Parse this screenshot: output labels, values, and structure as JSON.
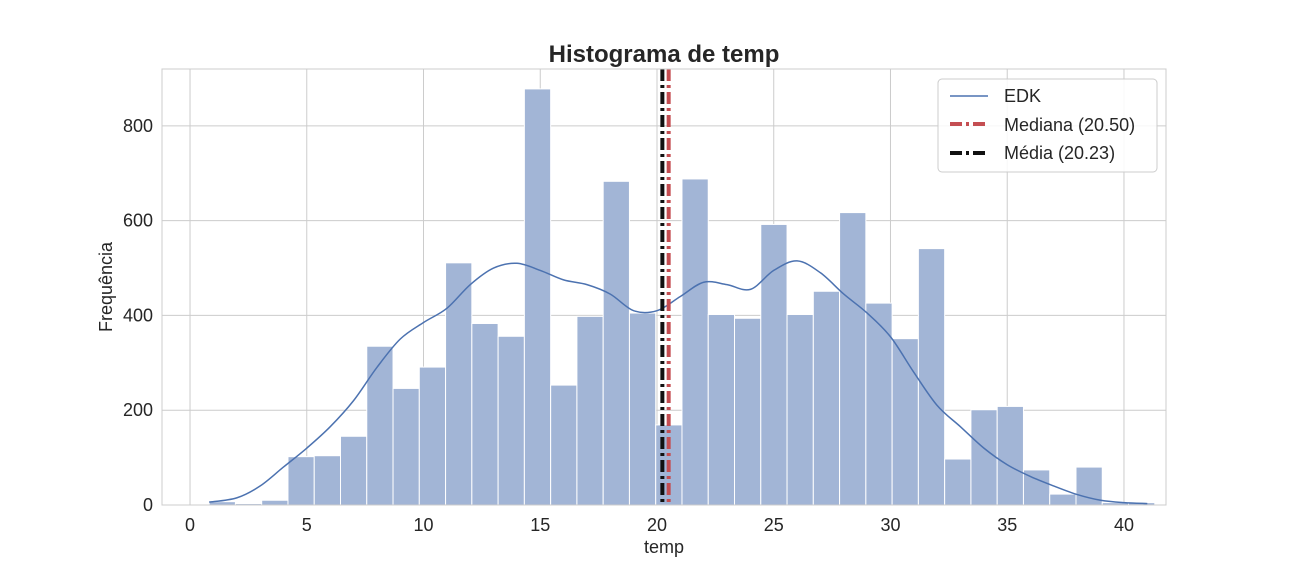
{
  "chart_data": {
    "type": "bar",
    "title": "Histograma de temp",
    "xlabel": "temp",
    "ylabel": "Frequência",
    "xlim": [
      -1.2,
      41.8
    ],
    "ylim": [
      0,
      920
    ],
    "x_ticks": [
      0,
      5,
      10,
      15,
      20,
      25,
      30,
      35,
      40
    ],
    "y_ticks": [
      0,
      200,
      400,
      600,
      800
    ],
    "grid": true,
    "legend_position": "top-right",
    "bin_width": 1.125,
    "bin_starts": [
      0.82,
      1.945,
      3.07,
      4.195,
      5.32,
      6.445,
      7.57,
      8.695,
      9.82,
      10.945,
      12.07,
      13.195,
      14.32,
      15.445,
      16.57,
      17.695,
      18.82,
      19.945,
      21.07,
      22.195,
      23.32,
      24.445,
      25.57,
      26.695,
      27.82,
      28.945,
      30.07,
      31.195,
      32.32,
      33.445,
      34.57,
      35.695,
      36.82,
      37.945,
      39.07,
      40.195
    ],
    "counts": [
      7,
      3,
      10,
      102,
      104,
      145,
      335,
      246,
      291,
      511,
      383,
      356,
      878,
      253,
      398,
      683,
      405,
      169,
      688,
      402,
      394,
      592,
      402,
      451,
      617,
      426,
      351,
      541,
      97,
      201,
      208,
      74,
      23,
      80,
      5,
      5
    ],
    "kde": {
      "name": "EDK",
      "x": [
        0.82,
        2,
        3,
        4,
        5,
        6,
        7,
        8,
        9,
        10,
        11,
        12,
        13,
        14,
        15,
        16,
        17,
        18,
        19,
        20,
        21,
        22,
        23,
        24,
        25,
        26,
        27,
        28,
        29,
        30,
        31,
        32,
        33,
        34,
        35,
        36,
        37,
        38,
        39,
        40,
        41
      ],
      "y": [
        6,
        15,
        40,
        80,
        120,
        165,
        220,
        290,
        350,
        385,
        415,
        465,
        500,
        510,
        495,
        475,
        465,
        445,
        410,
        410,
        440,
        470,
        465,
        455,
        495,
        515,
        490,
        445,
        405,
        355,
        280,
        210,
        165,
        120,
        85,
        60,
        40,
        22,
        10,
        5,
        3
      ]
    },
    "median": {
      "name": "Mediana (20.50)",
      "value": 20.5,
      "color": "#c44e52"
    },
    "mean": {
      "name": "Média (20.23)",
      "value": 20.23,
      "color": "#111111"
    },
    "colors": {
      "bar": "#a2b5d6",
      "kde": "#4c72b0",
      "grid": "#cccccc",
      "frame": "#cccccc"
    }
  }
}
